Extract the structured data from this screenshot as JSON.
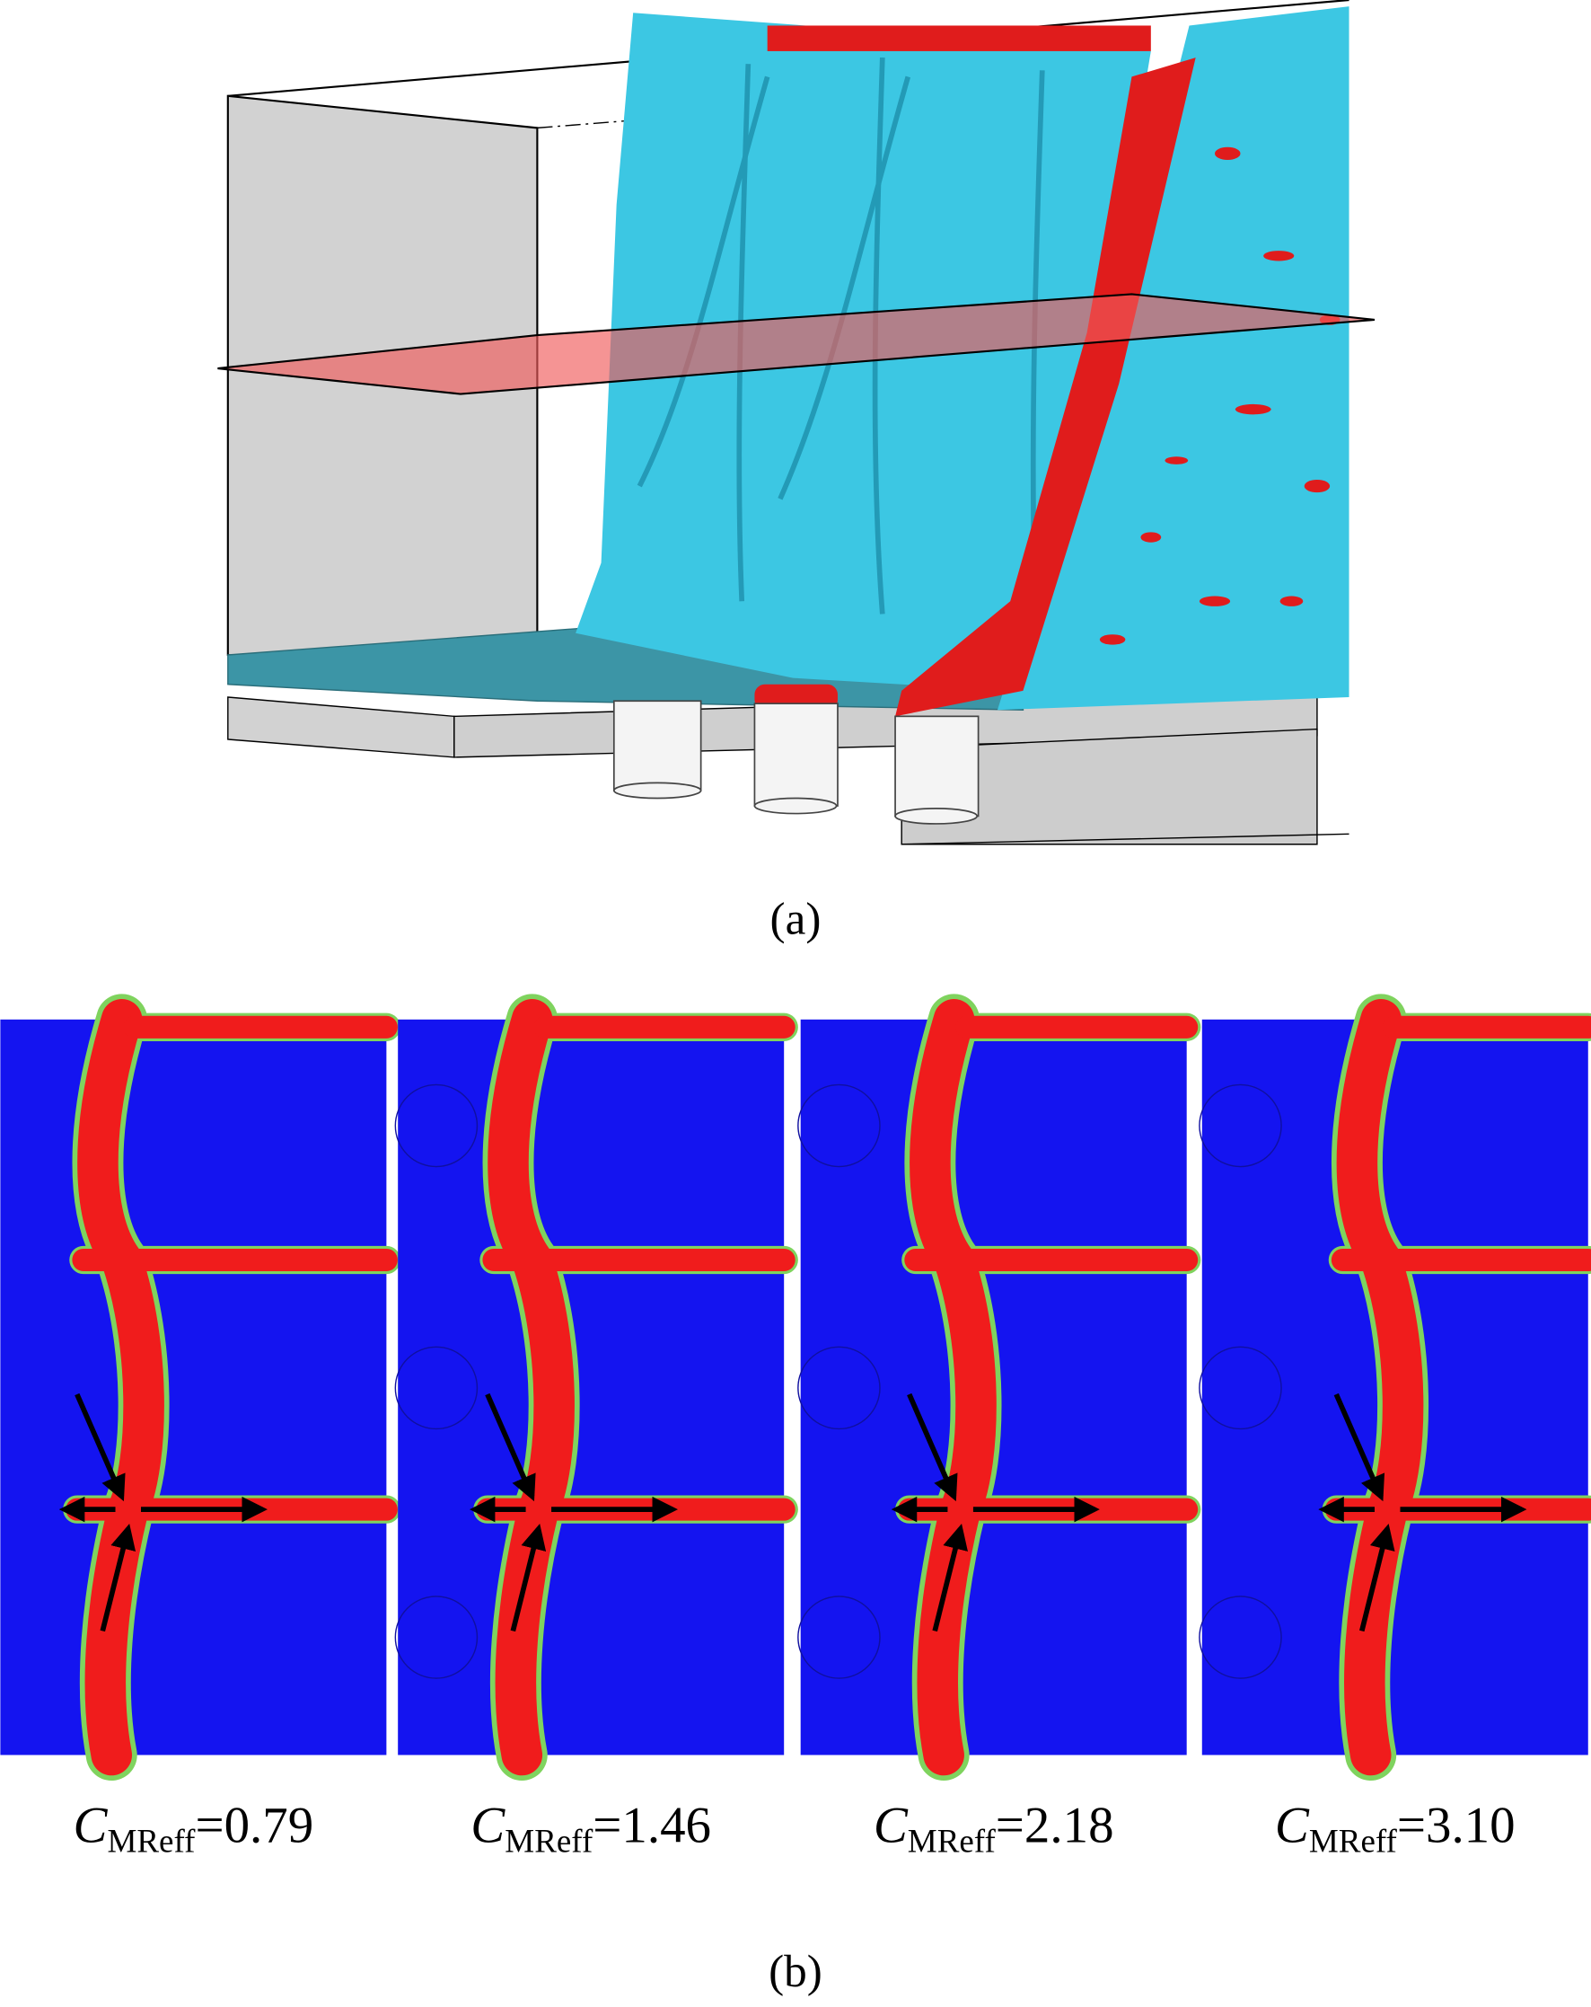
{
  "panel_a": {
    "label": "(a)"
  },
  "panel_b": {
    "label": "(b)",
    "subfigures": [
      {
        "symbol": "C",
        "subscript": "MReff",
        "value": "=0.79"
      },
      {
        "symbol": "C",
        "subscript": "MReff",
        "value": "=1.46"
      },
      {
        "symbol": "C",
        "subscript": "MReff",
        "value": "=2.18"
      },
      {
        "symbol": "C",
        "subscript": "MReff",
        "value": "=3.10"
      }
    ]
  }
}
